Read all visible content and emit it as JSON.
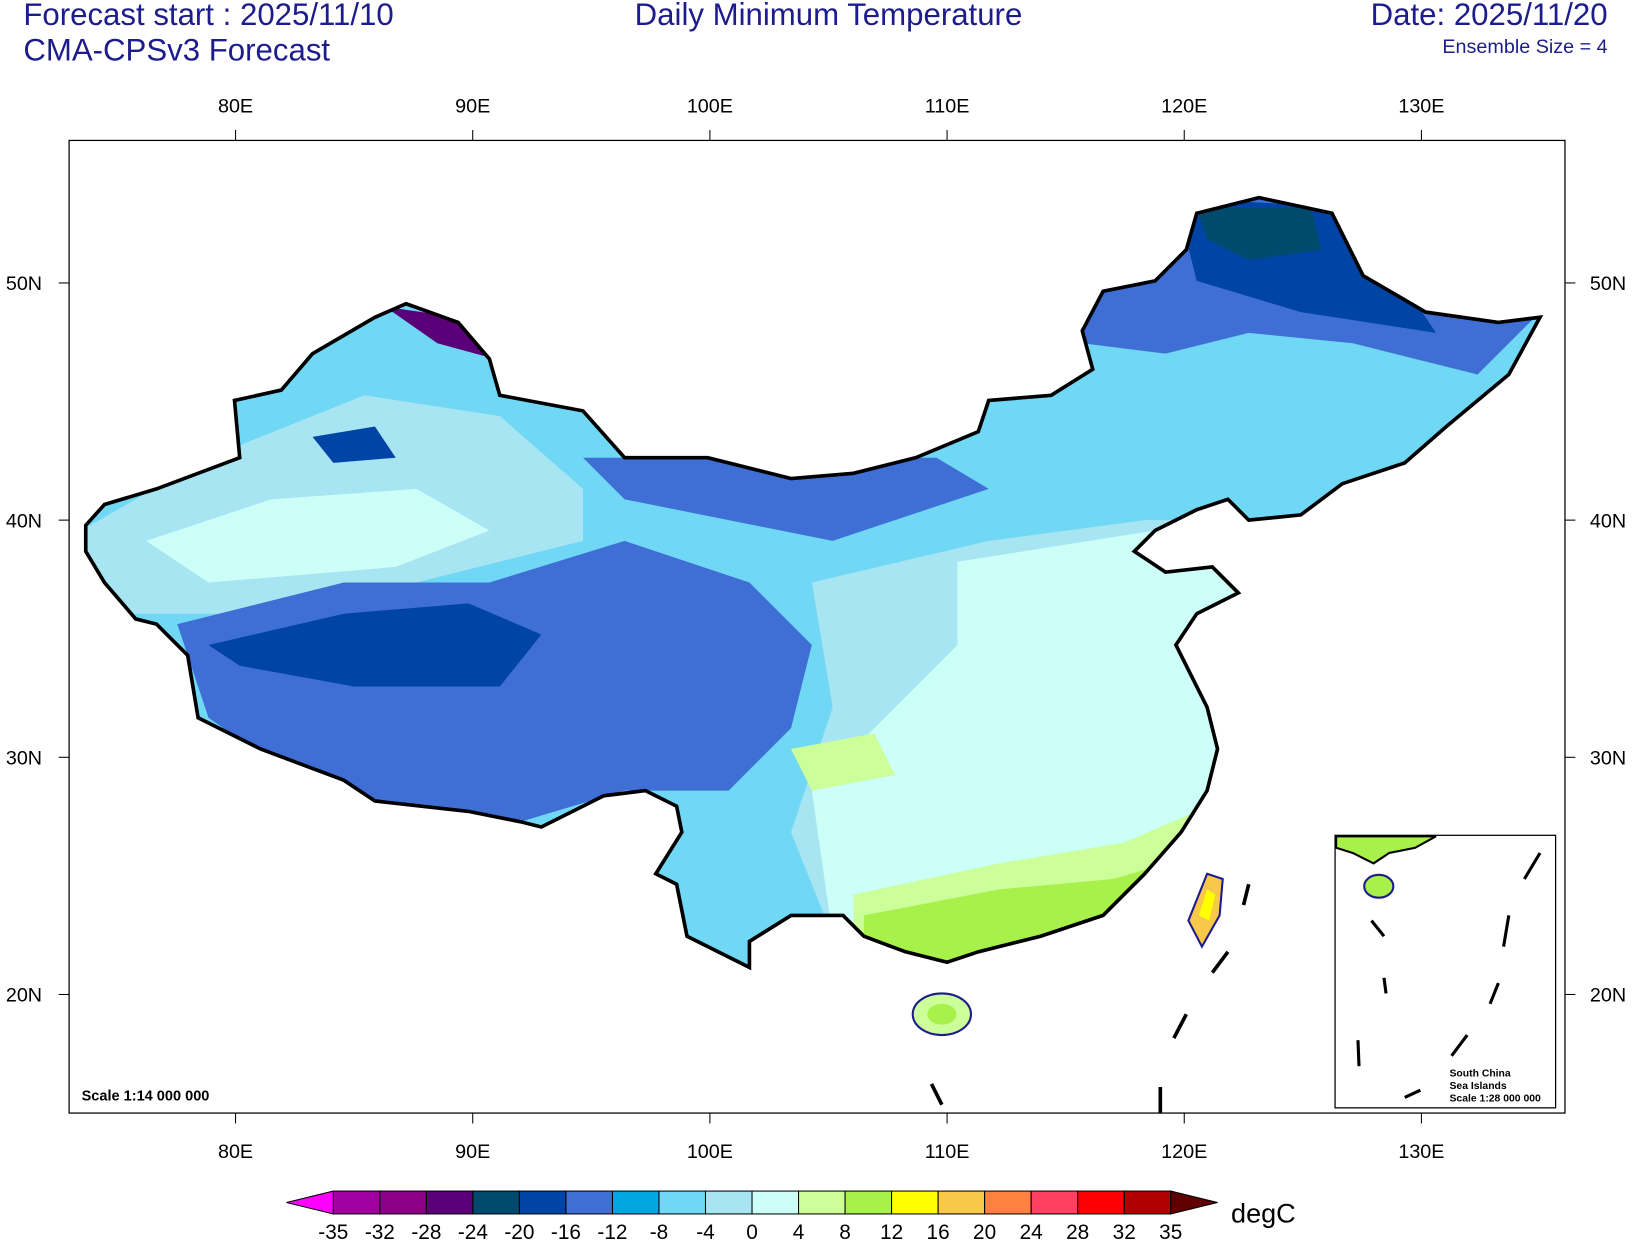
{
  "header": {
    "forecast_start": "Forecast start : 2025/11/10",
    "model": "CMA-CPSv3 Forecast",
    "title": "Daily Minimum Temperature",
    "date": "Date: 2025/11/20",
    "ensemble": "Ensemble Size = 4"
  },
  "map": {
    "lon_ticks": [
      {
        "value": 80,
        "label": "80E"
      },
      {
        "value": 90,
        "label": "90E"
      },
      {
        "value": 100,
        "label": "100E"
      },
      {
        "value": 110,
        "label": "110E"
      },
      {
        "value": 120,
        "label": "120E"
      },
      {
        "value": 130,
        "label": "130E"
      }
    ],
    "lat_ticks": [
      {
        "value": 50,
        "label": "50N"
      },
      {
        "value": 40,
        "label": "40N"
      },
      {
        "value": 30,
        "label": "30N"
      },
      {
        "value": 20,
        "label": "20N"
      }
    ],
    "scale": "Scale 1:14 000 000",
    "inset": {
      "line1": "South China",
      "line2": "Sea Islands",
      "line3": "Scale 1:28 000 000"
    }
  },
  "colorbar": {
    "ticks": [
      -35,
      -32,
      -28,
      -24,
      -20,
      -16,
      -12,
      -8,
      -4,
      0,
      4,
      8,
      12,
      16,
      20,
      24,
      28,
      32,
      35
    ],
    "colors": [
      "#ff00ff",
      "#a000a0",
      "#8c0088",
      "#5a0078",
      "#004a6e",
      "#0045a5",
      "#3f6fd5",
      "#00a6e0",
      "#70d8f5",
      "#a8e5f2",
      "#ccfff8",
      "#ccff99",
      "#a8f04a",
      "#ffff00",
      "#f8c848",
      "#ff8040",
      "#ff4060",
      "#ff0000",
      "#b00000",
      "#600000"
    ],
    "units": "degC"
  }
}
